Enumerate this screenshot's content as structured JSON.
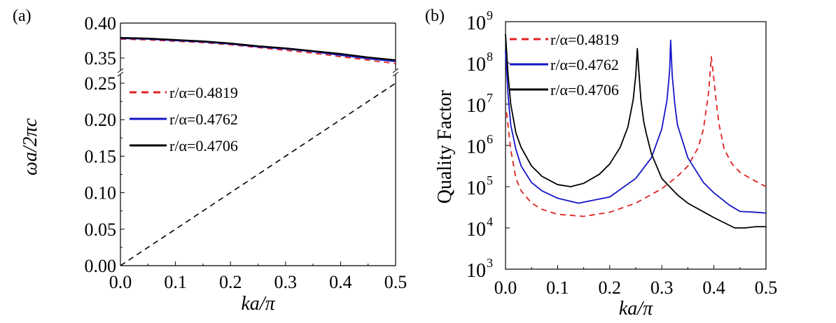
{
  "chart_data": [
    {
      "panel_label": "(a)",
      "type": "line",
      "xlabel": "ka/π",
      "ylabel": "ωa/2πc",
      "xlim": [
        0,
        0.5
      ],
      "ylim": [
        0,
        0.4
      ],
      "y_axis_break": [
        0.26,
        0.333
      ],
      "xticks": [
        "0.0",
        "0.1",
        "0.2",
        "0.3",
        "0.4",
        "0.5"
      ],
      "yticks": [
        "0.00",
        "0.05",
        "0.10",
        "0.15",
        "0.20",
        "0.25",
        "0.35",
        "0.40"
      ],
      "legend_placement": "upper-left",
      "series": [
        {
          "name": "r/α=0.4819",
          "color": "#e02020",
          "dash": true,
          "x": [
            0,
            0.05,
            0.1,
            0.15,
            0.2,
            0.25,
            0.3,
            0.35,
            0.4,
            0.45,
            0.5
          ],
          "y": [
            0.377,
            0.376,
            0.374,
            0.372,
            0.369,
            0.365,
            0.361,
            0.357,
            0.352,
            0.347,
            0.342
          ]
        },
        {
          "name": "r/α=0.4762",
          "color": "#1414c8",
          "dash": false,
          "x": [
            0,
            0.05,
            0.1,
            0.15,
            0.2,
            0.25,
            0.3,
            0.35,
            0.4,
            0.45,
            0.5
          ],
          "y": [
            0.378,
            0.377,
            0.375,
            0.373,
            0.37,
            0.366,
            0.363,
            0.359,
            0.354,
            0.349,
            0.345
          ]
        },
        {
          "name": "r/α=0.4706",
          "color": "#000000",
          "dash": false,
          "x": [
            0,
            0.05,
            0.1,
            0.15,
            0.2,
            0.25,
            0.3,
            0.35,
            0.4,
            0.45,
            0.5
          ],
          "y": [
            0.379,
            0.378,
            0.376,
            0.374,
            0.371,
            0.367,
            0.364,
            0.36,
            0.356,
            0.351,
            0.347
          ]
        },
        {
          "name": "",
          "color": "#000000",
          "dash": true,
          "legend": false,
          "x": [
            0,
            0.5
          ],
          "y": [
            0,
            0.25
          ]
        }
      ]
    },
    {
      "panel_label": "(b)",
      "type": "line",
      "xlabel": "ka/π",
      "ylabel": "Quality Factor",
      "xlim": [
        0,
        0.5
      ],
      "ylim": [
        1000.0,
        1000000000.0
      ],
      "yscale": "log",
      "xticks": [
        "0.0",
        "0.1",
        "0.2",
        "0.3",
        "0.4",
        "0.5"
      ],
      "yticks_exp": [
        "3",
        "4",
        "5",
        "6",
        "7",
        "8",
        "9"
      ],
      "ytick_base": "10",
      "legend_placement": "upper-left",
      "series": [
        {
          "name": "r/α=0.4819",
          "color": "#e02020",
          "dash": true,
          "x": [
            0.002,
            0.01,
            0.02,
            0.03,
            0.05,
            0.07,
            0.1,
            0.15,
            0.2,
            0.25,
            0.3,
            0.33,
            0.35,
            0.37,
            0.38,
            0.39,
            0.395,
            0.4,
            0.405,
            0.41,
            0.42,
            0.435,
            0.45,
            0.47,
            0.5
          ],
          "log10_q": [
            6.8,
            5.9,
            5.2,
            4.9,
            4.6,
            4.45,
            4.33,
            4.28,
            4.38,
            4.6,
            4.95,
            5.25,
            5.5,
            5.95,
            6.4,
            7.3,
            8.15,
            7.6,
            7.0,
            6.5,
            5.9,
            5.55,
            5.35,
            5.2,
            5.0
          ]
        },
        {
          "name": "r/α=0.4762",
          "color": "#1414c8",
          "dash": false,
          "x": [
            0,
            0.005,
            0.01,
            0.02,
            0.03,
            0.05,
            0.07,
            0.1,
            0.14,
            0.2,
            0.25,
            0.28,
            0.3,
            0.31,
            0.315,
            0.317,
            0.32,
            0.325,
            0.33,
            0.35,
            0.38,
            0.4,
            0.43,
            0.45,
            0.48,
            0.5
          ],
          "log10_q": [
            8.3,
            7.2,
            6.5,
            5.9,
            5.5,
            5.1,
            4.9,
            4.72,
            4.6,
            4.75,
            5.2,
            5.7,
            6.4,
            7.1,
            7.8,
            8.55,
            7.7,
            7.0,
            6.5,
            5.7,
            5.1,
            4.85,
            4.55,
            4.4,
            4.38,
            4.36
          ]
        },
        {
          "name": "r/α=0.4706",
          "color": "#000000",
          "dash": false,
          "x": [
            0,
            0.005,
            0.01,
            0.02,
            0.03,
            0.05,
            0.07,
            0.1,
            0.125,
            0.15,
            0.18,
            0.2,
            0.22,
            0.235,
            0.245,
            0.25,
            0.253,
            0.257,
            0.26,
            0.265,
            0.27,
            0.28,
            0.3,
            0.33,
            0.35,
            0.4,
            0.44,
            0.46,
            0.48,
            0.5
          ],
          "log10_q": [
            8.7,
            7.7,
            7.0,
            6.3,
            5.95,
            5.5,
            5.25,
            5.05,
            5.0,
            5.08,
            5.3,
            5.55,
            5.95,
            6.45,
            7.1,
            7.7,
            8.35,
            7.6,
            7.1,
            6.6,
            6.3,
            5.8,
            5.2,
            4.8,
            4.6,
            4.25,
            4.0,
            4.0,
            4.03,
            4.03
          ]
        }
      ]
    }
  ]
}
